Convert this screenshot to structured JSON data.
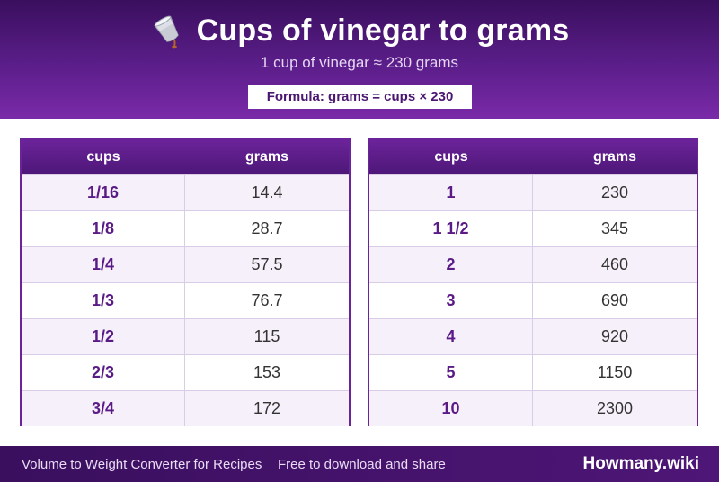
{
  "header": {
    "icon": "pouring-cup-icon",
    "title": "Cups of vinegar to grams",
    "subtitle": "1 cup of vinegar ≈ 230 grams",
    "formula": "Formula: grams = cups × 230"
  },
  "tables": [
    {
      "col1": "cups",
      "col2": "grams",
      "rows": [
        {
          "cups": "1/16",
          "grams": "14.4"
        },
        {
          "cups": "1/8",
          "grams": "28.7"
        },
        {
          "cups": "1/4",
          "grams": "57.5"
        },
        {
          "cups": "1/3",
          "grams": "76.7"
        },
        {
          "cups": "1/2",
          "grams": "115"
        },
        {
          "cups": "2/3",
          "grams": "153"
        },
        {
          "cups": "3/4",
          "grams": "172"
        }
      ]
    },
    {
      "col1": "cups",
      "col2": "grams",
      "rows": [
        {
          "cups": "1",
          "grams": "230"
        },
        {
          "cups": "1 1/2",
          "grams": "345"
        },
        {
          "cups": "2",
          "grams": "460"
        },
        {
          "cups": "3",
          "grams": "690"
        },
        {
          "cups": "4",
          "grams": "920"
        },
        {
          "cups": "5",
          "grams": "1150"
        },
        {
          "cups": "10",
          "grams": "2300"
        }
      ]
    }
  ],
  "footer": {
    "left_text": "Volume to Weight Converter for Recipes",
    "middle_text": "Free to download and share",
    "brand": "Howmany.wiki"
  },
  "colors": {
    "header_dark": "#3a0f5e",
    "header_light": "#7a2aa8",
    "accent": "#6b2399",
    "row_alt": "#f6f0fb"
  }
}
